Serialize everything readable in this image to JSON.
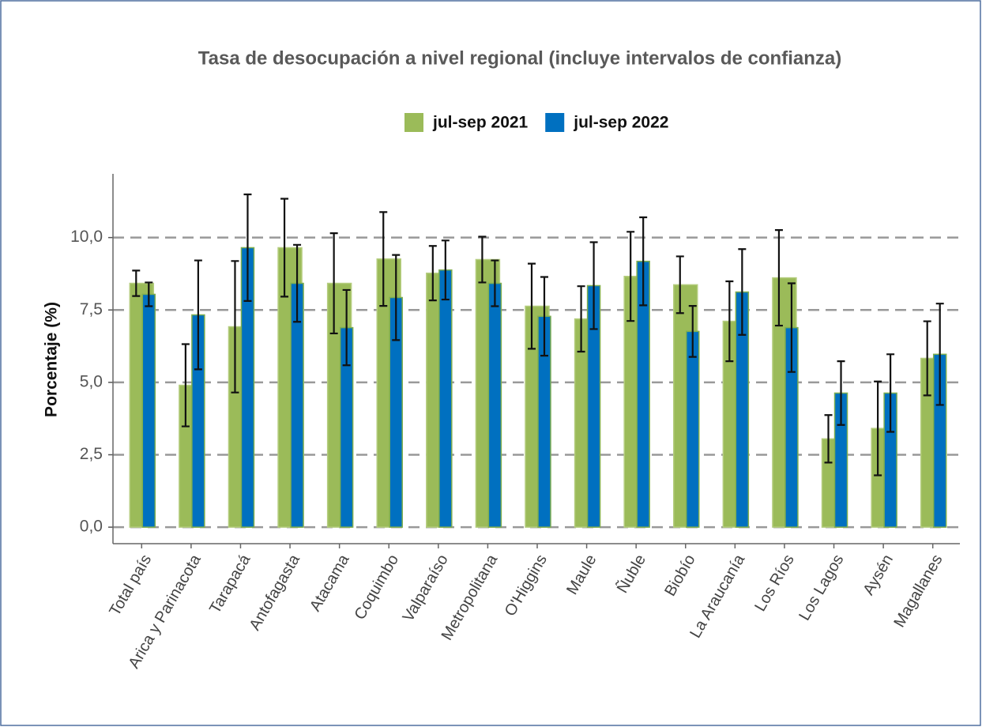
{
  "chart_data": {
    "type": "bar",
    "title": "Tasa de desocupación a nivel regional (incluye intervalos de confianza)",
    "ylabel": "Porcentaje (%)",
    "categories": [
      "Total país",
      "Arica y Parinacota",
      "Tarapacá",
      "Antofagasta",
      "Atacama",
      "Coquimbo",
      "Valparaíso",
      "Metropolitana",
      "O'Higgins",
      "Maule",
      "Ñuble",
      "Biobío",
      "La Araucanía",
      "Los Ríos",
      "Los Lagos",
      "Aysén",
      "Magallanes"
    ],
    "series": [
      {
        "name": "jul-sep 2021",
        "color": "#9bbb59",
        "values": [
          8.42,
          4.9,
          6.92,
          9.65,
          8.42,
          9.26,
          8.77,
          9.24,
          7.63,
          7.19,
          8.66,
          8.37,
          7.11,
          8.61,
          3.05,
          3.41,
          5.83
        ],
        "errors": [
          0.44,
          1.42,
          2.27,
          1.69,
          1.73,
          1.62,
          0.94,
          0.79,
          1.47,
          1.13,
          1.54,
          0.98,
          1.38,
          1.65,
          0.82,
          1.62,
          1.28
        ]
      },
      {
        "name": "jul-sep 2022",
        "color": "#0070c0",
        "values": [
          8.04,
          7.33,
          9.65,
          8.42,
          6.89,
          7.93,
          8.88,
          8.42,
          7.28,
          8.34,
          9.18,
          6.76,
          8.12,
          6.89,
          4.63,
          4.63,
          5.97
        ],
        "errors": [
          0.41,
          1.88,
          1.84,
          1.33,
          1.3,
          1.47,
          1.02,
          0.79,
          1.36,
          1.5,
          1.52,
          0.88,
          1.48,
          1.53,
          1.1,
          1.34,
          1.75
        ]
      }
    ],
    "ylim": [
      -0.57,
      12.2
    ],
    "yticks": [
      {
        "value": 0,
        "label": "0,0"
      },
      {
        "value": 2.5,
        "label": "2,5"
      },
      {
        "value": 5,
        "label": "5,0"
      },
      {
        "value": 7.5,
        "label": "7,5"
      },
      {
        "value": 10,
        "label": "10,0"
      }
    ],
    "grid": true,
    "legend": "top"
  }
}
